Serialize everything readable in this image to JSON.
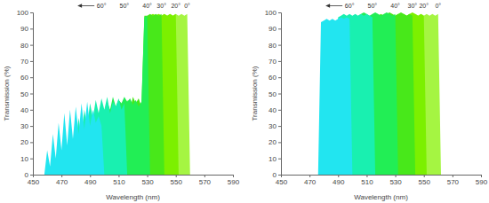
{
  "chart_data": [
    {
      "type": "area",
      "xlabel": "Wavelength (nm)",
      "ylabel": "Transmission (%)",
      "xlim": [
        450,
        590
      ],
      "xticks": [
        450,
        470,
        490,
        510,
        530,
        550,
        570,
        590
      ],
      "ylim": [
        0,
        100
      ],
      "yticks": [
        0,
        10,
        20,
        30,
        40,
        50,
        60,
        70,
        80,
        90,
        100
      ],
      "grid": false,
      "x": [
        456,
        458,
        460,
        462,
        464,
        466,
        468,
        470,
        472,
        474,
        476,
        478,
        480,
        482,
        484,
        486,
        488,
        490,
        492,
        494,
        496,
        498,
        500,
        502,
        504,
        506,
        508,
        510,
        512,
        514,
        516,
        518,
        520,
        522,
        524,
        526,
        528,
        530,
        532,
        534,
        536,
        538,
        540,
        542,
        544,
        546,
        548,
        550,
        552,
        554,
        556,
        558,
        560,
        562
      ],
      "series": [
        {
          "name": "60°",
          "color": "#22e5f0",
          "values": [
            null,
            0,
            15,
            5,
            25,
            10,
            32,
            15,
            38,
            18,
            40,
            22,
            42,
            25,
            44,
            28,
            45,
            30,
            40,
            32,
            36,
            30,
            0,
            null,
            null,
            null,
            null,
            null,
            null,
            null,
            null,
            null,
            null,
            null,
            null,
            null,
            null,
            null,
            null,
            null,
            null,
            null,
            null,
            null,
            null,
            null,
            null,
            null,
            null,
            null,
            null,
            null,
            null,
            null
          ]
        },
        {
          "name": "50°",
          "color": "#19f0b0",
          "values": [
            null,
            null,
            null,
            null,
            null,
            null,
            null,
            null,
            null,
            null,
            null,
            0,
            20,
            35,
            22,
            40,
            30,
            44,
            35,
            46,
            38,
            47,
            40,
            48,
            38,
            45,
            42,
            47,
            40,
            44,
            0,
            null,
            null,
            null,
            null,
            null,
            null,
            null,
            null,
            null,
            null,
            null,
            null,
            null,
            null,
            null,
            null,
            null,
            null,
            null,
            null,
            null,
            null,
            null
          ]
        },
        {
          "name": "40°",
          "color": "#22ee55",
          "values": [
            null,
            null,
            null,
            null,
            null,
            null,
            null,
            null,
            null,
            null,
            null,
            null,
            null,
            null,
            null,
            null,
            null,
            null,
            null,
            0,
            30,
            42,
            35,
            45,
            40,
            48,
            42,
            46,
            44,
            48,
            45,
            47,
            43,
            46,
            42,
            45,
            97,
            98,
            0,
            null,
            null,
            null,
            null,
            null,
            null,
            null,
            null,
            null,
            null,
            null,
            null,
            null,
            null,
            null
          ]
        },
        {
          "name": "30°",
          "color": "#48e81a",
          "values": [
            null,
            null,
            null,
            null,
            null,
            null,
            null,
            null,
            null,
            null,
            null,
            null,
            null,
            null,
            null,
            null,
            null,
            null,
            null,
            null,
            null,
            null,
            null,
            null,
            null,
            null,
            0,
            35,
            42,
            38,
            46,
            40,
            48,
            44,
            47,
            42,
            98,
            98,
            99,
            98,
            99,
            98,
            99,
            0,
            null,
            null,
            null,
            null,
            null,
            null,
            null,
            null,
            null,
            null
          ]
        },
        {
          "name": "20°",
          "color": "#7cf000",
          "values": [
            null,
            null,
            null,
            null,
            null,
            null,
            null,
            null,
            null,
            null,
            null,
            null,
            null,
            null,
            null,
            null,
            null,
            null,
            null,
            null,
            null,
            null,
            null,
            null,
            null,
            null,
            null,
            null,
            null,
            null,
            0,
            30,
            40,
            35,
            44,
            40,
            30,
            97,
            98,
            99,
            98,
            99,
            98,
            99,
            98,
            99,
            98,
            99,
            0,
            null,
            null,
            null,
            null,
            null
          ]
        },
        {
          "name": "0°",
          "color": "#a5f542",
          "values": [
            null,
            null,
            null,
            null,
            null,
            null,
            null,
            null,
            null,
            null,
            null,
            null,
            null,
            null,
            null,
            null,
            null,
            null,
            null,
            null,
            null,
            null,
            null,
            null,
            null,
            null,
            null,
            null,
            null,
            null,
            null,
            null,
            null,
            null,
            null,
            null,
            0,
            96,
            98,
            99,
            98,
            99,
            98,
            99,
            98,
            99,
            98,
            99,
            98,
            99,
            98,
            99,
            0,
            null
          ]
        }
      ]
    },
    {
      "type": "area",
      "xlabel": "Wavelength (nm)",
      "ylabel": "Transmission (%)",
      "xlim": [
        450,
        590
      ],
      "xticks": [
        450,
        470,
        490,
        510,
        530,
        550,
        570,
        590
      ],
      "ylim": [
        0,
        100
      ],
      "yticks": [
        0,
        10,
        20,
        30,
        40,
        50,
        60,
        70,
        80,
        90,
        100
      ],
      "grid": false,
      "x": [
        456,
        458,
        460,
        462,
        464,
        466,
        468,
        470,
        472,
        474,
        476,
        478,
        480,
        482,
        484,
        486,
        488,
        490,
        492,
        494,
        496,
        498,
        500,
        502,
        504,
        506,
        508,
        510,
        512,
        514,
        516,
        518,
        520,
        522,
        524,
        526,
        528,
        530,
        532,
        534,
        536,
        538,
        540,
        542,
        544,
        546,
        548,
        550,
        552,
        554,
        556,
        558,
        560,
        562
      ],
      "series": [
        {
          "name": "60°",
          "color": "#22e5f0",
          "values": [
            null,
            null,
            null,
            null,
            null,
            null,
            null,
            null,
            null,
            null,
            0,
            94,
            95,
            96,
            95,
            96,
            95,
            96,
            97,
            96,
            97,
            96,
            0,
            null,
            null,
            null,
            null,
            null,
            null,
            null,
            null,
            null,
            null,
            null,
            null,
            null,
            null,
            null,
            null,
            null,
            null,
            null,
            null,
            null,
            null,
            null,
            null,
            null,
            null,
            null,
            null,
            null,
            null,
            null
          ]
        },
        {
          "name": "50°",
          "color": "#19f0b0",
          "values": [
            null,
            null,
            null,
            null,
            null,
            null,
            null,
            null,
            null,
            null,
            null,
            null,
            null,
            null,
            null,
            null,
            0,
            97,
            98,
            99,
            98,
            99,
            98,
            99,
            98,
            99,
            98,
            99,
            98,
            97,
            0,
            null,
            null,
            null,
            null,
            null,
            null,
            null,
            null,
            null,
            null,
            null,
            null,
            null,
            null,
            null,
            null,
            null,
            null,
            null,
            null,
            null,
            null,
            null
          ]
        },
        {
          "name": "40°",
          "color": "#22ee55",
          "values": [
            null,
            null,
            null,
            null,
            null,
            null,
            null,
            null,
            null,
            null,
            null,
            null,
            null,
            null,
            null,
            null,
            null,
            null,
            null,
            null,
            null,
            null,
            null,
            0,
            98,
            99,
            100,
            99,
            98,
            99,
            100,
            99,
            98,
            99,
            100,
            99,
            98,
            99,
            0,
            null,
            null,
            null,
            null,
            null,
            null,
            null,
            null,
            null,
            null,
            null,
            null,
            null,
            null,
            null
          ]
        },
        {
          "name": "30°",
          "color": "#48e81a",
          "values": [
            null,
            null,
            null,
            null,
            null,
            null,
            null,
            null,
            null,
            null,
            null,
            null,
            null,
            null,
            null,
            null,
            null,
            null,
            null,
            null,
            null,
            null,
            null,
            null,
            null,
            null,
            null,
            null,
            null,
            null,
            0,
            98,
            99,
            98,
            99,
            100,
            99,
            98,
            99,
            100,
            99,
            98,
            99,
            98,
            0,
            null,
            null,
            null,
            null,
            null,
            null,
            null,
            null,
            null
          ]
        },
        {
          "name": "20°",
          "color": "#7cf000",
          "values": [
            null,
            null,
            null,
            null,
            null,
            null,
            null,
            null,
            null,
            null,
            null,
            null,
            null,
            null,
            null,
            null,
            null,
            null,
            null,
            null,
            null,
            null,
            null,
            null,
            null,
            null,
            null,
            null,
            null,
            null,
            null,
            null,
            null,
            null,
            null,
            null,
            0,
            98,
            99,
            98,
            99,
            98,
            99,
            100,
            99,
            98,
            99,
            98,
            0,
            null,
            null,
            null,
            null,
            null
          ]
        },
        {
          "name": "0°",
          "color": "#a5f542",
          "values": [
            null,
            null,
            null,
            null,
            null,
            null,
            null,
            null,
            null,
            null,
            null,
            null,
            null,
            null,
            null,
            null,
            null,
            null,
            null,
            null,
            null,
            null,
            null,
            null,
            null,
            null,
            null,
            null,
            null,
            null,
            null,
            null,
            null,
            null,
            null,
            null,
            null,
            null,
            null,
            null,
            0,
            98,
            99,
            98,
            99,
            98,
            99,
            98,
            99,
            98,
            99,
            98,
            99,
            0
          ]
        }
      ]
    }
  ]
}
